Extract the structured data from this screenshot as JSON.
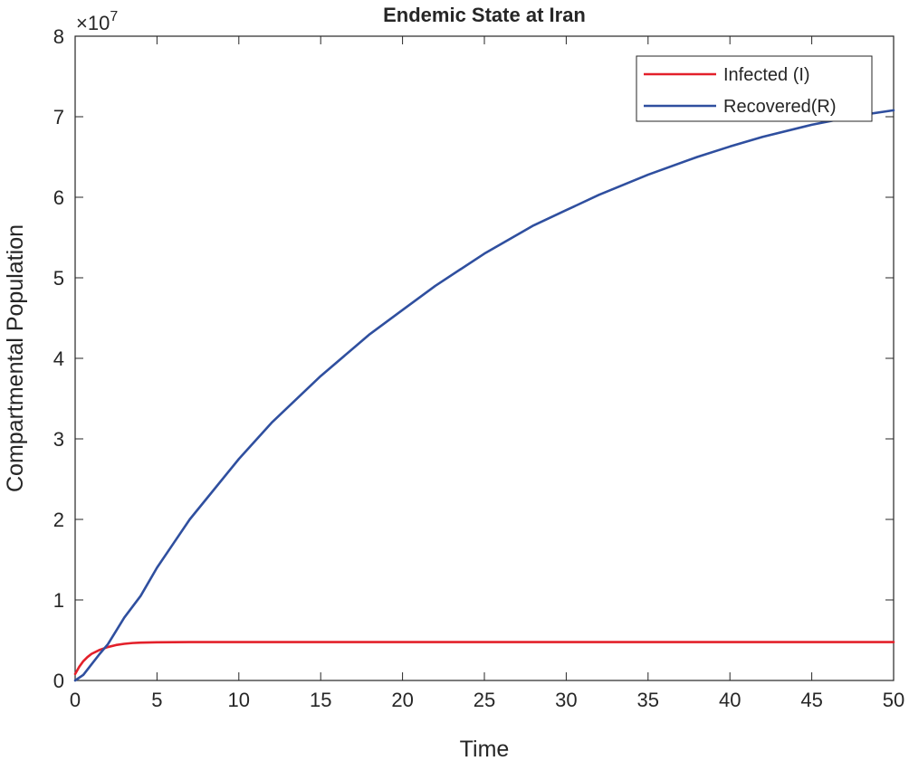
{
  "chart_data": {
    "type": "line",
    "title": "Endemic State at Iran",
    "xlabel": "Time",
    "ylabel": "Compartmental Population",
    "exponent_label": "×10",
    "exponent_power": "7",
    "xlim": [
      0,
      50
    ],
    "ylim": [
      0,
      8
    ],
    "x_ticks": [
      0,
      5,
      10,
      15,
      20,
      25,
      30,
      35,
      40,
      45,
      50
    ],
    "y_ticks": [
      0,
      1,
      2,
      3,
      4,
      5,
      6,
      7,
      8
    ],
    "grid": false,
    "legend_position": "top-right",
    "series": [
      {
        "name": "Infected (I)",
        "color": "#e3202a",
        "x": [
          0,
          0.25,
          0.5,
          0.75,
          1,
          1.5,
          2,
          2.5,
          3,
          3.5,
          4,
          5,
          6,
          7,
          8,
          10,
          15,
          20,
          25,
          30,
          35,
          40,
          45,
          50
        ],
        "values": [
          0.08,
          0.17,
          0.24,
          0.29,
          0.33,
          0.38,
          0.415,
          0.44,
          0.455,
          0.465,
          0.47,
          0.474,
          0.476,
          0.477,
          0.477,
          0.477,
          0.477,
          0.477,
          0.477,
          0.477,
          0.477,
          0.477,
          0.477,
          0.477
        ]
      },
      {
        "name": "Recovered(R)",
        "color": "#2f4f9f",
        "x": [
          0,
          0.5,
          1,
          1.5,
          2,
          3,
          4,
          5,
          6,
          7,
          8,
          10,
          12,
          15,
          18,
          20,
          22,
          25,
          28,
          30,
          32,
          35,
          38,
          40,
          42,
          45,
          48,
          50
        ],
        "values": [
          0.0,
          0.07,
          0.2,
          0.33,
          0.45,
          0.78,
          1.05,
          1.4,
          1.7,
          2.0,
          2.25,
          2.75,
          3.2,
          3.78,
          4.3,
          4.6,
          4.9,
          5.3,
          5.65,
          5.84,
          6.03,
          6.28,
          6.5,
          6.63,
          6.75,
          6.9,
          7.02,
          7.08
        ]
      }
    ]
  }
}
